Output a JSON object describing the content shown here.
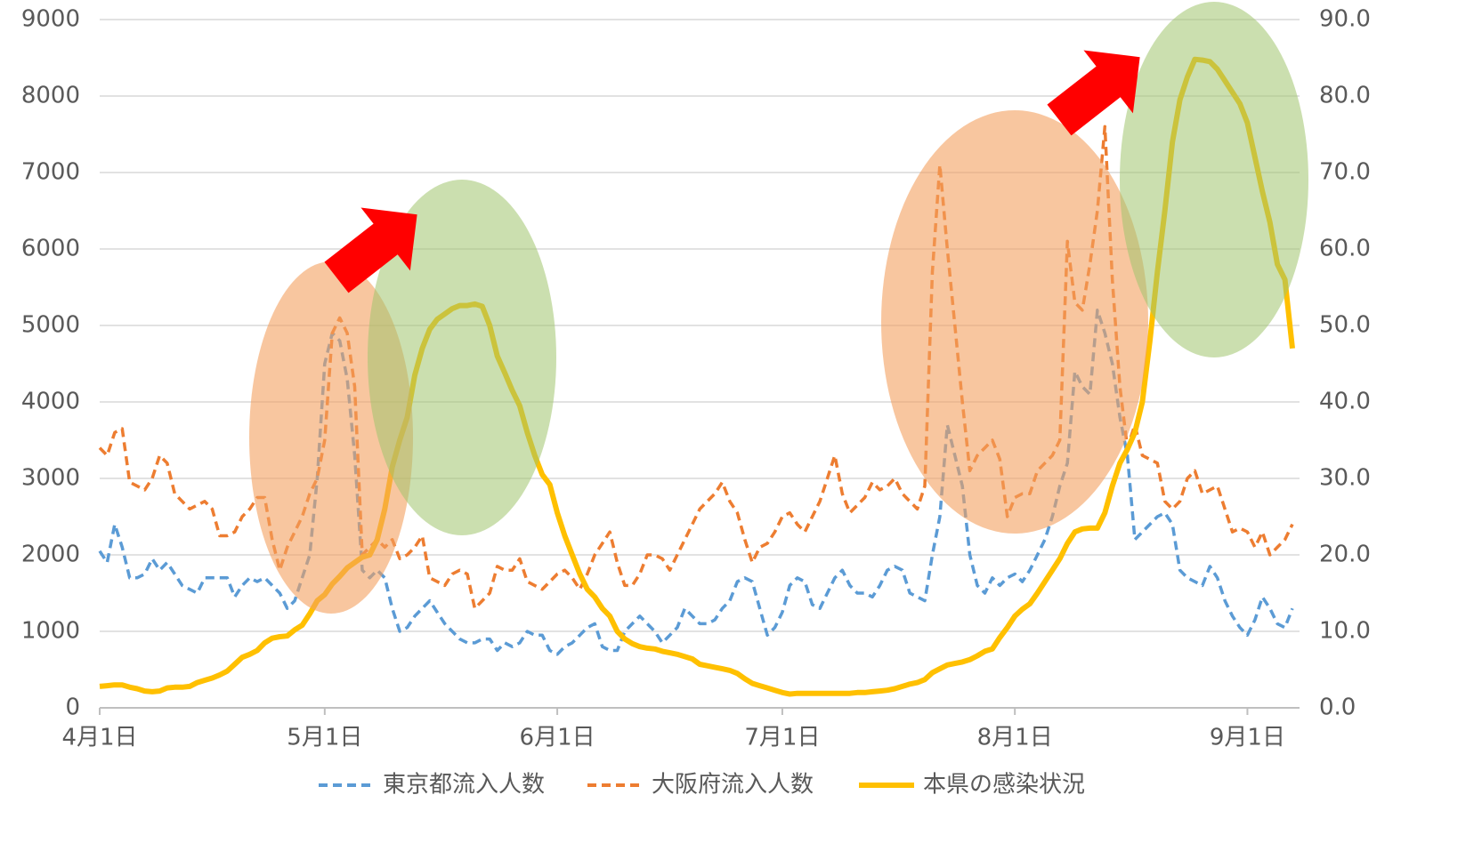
{
  "chart_data": {
    "type": "line",
    "categories": [
      "4月1日",
      null,
      null,
      null,
      null,
      null,
      null,
      null,
      null,
      null,
      null,
      null,
      null,
      null,
      null,
      null,
      null,
      null,
      null,
      null,
      null,
      null,
      null,
      null,
      null,
      null,
      null,
      null,
      null,
      null,
      "5月1日",
      null,
      null,
      null,
      null,
      null,
      null,
      null,
      null,
      null,
      null,
      null,
      null,
      null,
      null,
      null,
      null,
      null,
      null,
      null,
      null,
      null,
      null,
      null,
      null,
      null,
      null,
      null,
      null,
      null,
      null,
      "6月1日",
      null,
      null,
      null,
      null,
      null,
      null,
      null,
      null,
      null,
      null,
      null,
      null,
      null,
      null,
      null,
      null,
      null,
      null,
      null,
      null,
      null,
      null,
      null,
      null,
      null,
      null,
      null,
      null,
      null,
      "7月1日",
      null,
      null,
      null,
      null,
      null,
      null,
      null,
      null,
      null,
      null,
      null,
      null,
      null,
      null,
      null,
      null,
      null,
      null,
      null,
      null,
      null,
      null,
      null,
      null,
      null,
      null,
      null,
      null,
      null,
      null,
      "8月1日",
      null,
      null,
      null,
      null,
      null,
      null,
      null,
      null,
      null,
      null,
      null,
      null,
      null,
      null,
      null,
      null,
      null,
      null,
      null,
      null,
      null,
      null,
      null,
      null,
      null,
      null,
      null,
      null,
      null,
      null,
      "9月1日",
      null,
      null,
      null,
      null,
      null,
      null
    ],
    "series": [
      {
        "name": "東京都流入人数",
        "color": "#5b9bd5",
        "dashed": true,
        "values": [
          2050,
          1900,
          2400,
          2100,
          1700,
          1700,
          1750,
          1950,
          1800,
          1900,
          1750,
          1600,
          1550,
          1500,
          1700,
          1700,
          1700,
          1700,
          1450,
          1600,
          1700,
          1650,
          1700,
          1600,
          1500,
          1300,
          1400,
          1700,
          2000,
          3000,
          4500,
          4900,
          4800,
          4300,
          3300,
          1800,
          1700,
          1800,
          1700,
          1300,
          1000,
          1050,
          1200,
          1300,
          1400,
          1250,
          1100,
          1000,
          900,
          850,
          850,
          900,
          900,
          750,
          850,
          800,
          850,
          1000,
          950,
          950,
          750,
          700,
          800,
          850,
          950,
          1050,
          1100,
          800,
          750,
          750,
          1000,
          1100,
          1200,
          1100,
          1000,
          850,
          950,
          1050,
          1300,
          1200,
          1100,
          1100,
          1150,
          1300,
          1400,
          1650,
          1700,
          1650,
          1300,
          950,
          1050,
          1250,
          1600,
          1700,
          1650,
          1350,
          1300,
          1500,
          1700,
          1800,
          1600,
          1500,
          1500,
          1450,
          1600,
          1800,
          1850,
          1800,
          1500,
          1450,
          1400,
          2000,
          2500,
          3700,
          3300,
          2900,
          2000,
          1600,
          1500,
          1700,
          1600,
          1700,
          1750,
          1650,
          1800,
          2000,
          2200,
          2500,
          2900,
          3200,
          4400,
          4200,
          4100,
          5200,
          4900,
          4500,
          3800,
          3300,
          2200,
          2300,
          2400,
          2500,
          2550,
          2400,
          1800,
          1700,
          1650,
          1600,
          1850,
          1700,
          1400,
          1200,
          1050,
          950,
          1150,
          1450,
          1300,
          1100,
          1050,
          1300
        ]
      },
      {
        "name": "大阪府流入人数",
        "color": "#ed7d31",
        "dashed": true,
        "values": [
          3400,
          3300,
          3600,
          3650,
          2950,
          2900,
          2850,
          3000,
          3300,
          3200,
          2800,
          2700,
          2600,
          2650,
          2700,
          2600,
          2250,
          2250,
          2300,
          2500,
          2600,
          2750,
          2750,
          2200,
          1800,
          2100,
          2300,
          2500,
          2800,
          3000,
          3500,
          4900,
          5100,
          4900,
          4200,
          2000,
          2100,
          2200,
          2100,
          2200,
          1950,
          2000,
          2100,
          2250,
          1700,
          1650,
          1600,
          1750,
          1800,
          1750,
          1300,
          1400,
          1500,
          1850,
          1800,
          1800,
          1950,
          1650,
          1600,
          1550,
          1650,
          1750,
          1800,
          1700,
          1550,
          1750,
          2000,
          2150,
          2300,
          1900,
          1600,
          1600,
          1750,
          2000,
          2000,
          1950,
          1800,
          2000,
          2200,
          2400,
          2600,
          2700,
          2800,
          2950,
          2700,
          2550,
          2200,
          1900,
          2100,
          2150,
          2300,
          2500,
          2550,
          2400,
          2300,
          2500,
          2700,
          3000,
          3300,
          2800,
          2550,
          2650,
          2750,
          2950,
          2850,
          2900,
          3000,
          2800,
          2700,
          2600,
          2900,
          5700,
          7100,
          6000,
          5000,
          4000,
          3100,
          3300,
          3400,
          3500,
          3250,
          2500,
          2750,
          2800,
          2800,
          3100,
          3200,
          3300,
          3500,
          6100,
          5300,
          5200,
          5800,
          6500,
          7600,
          5600,
          4200,
          3400,
          3700,
          3300,
          3250,
          3200,
          2700,
          2600,
          2700,
          3000,
          3100,
          2800,
          2850,
          2900,
          2600,
          2300,
          2350,
          2300,
          2100,
          2300,
          2000,
          2100,
          2200,
          2400
        ]
      },
      {
        "name": "本県の感染状況",
        "color": "#ffc000",
        "dashed": false,
        "axis": "y2",
        "values": [
          2.8,
          2.9,
          3.0,
          3.0,
          2.7,
          2.5,
          2.2,
          2.1,
          2.2,
          2.6,
          2.7,
          2.7,
          2.8,
          3.3,
          3.6,
          3.9,
          4.3,
          4.8,
          5.7,
          6.6,
          7.0,
          7.5,
          8.5,
          9.1,
          9.3,
          9.4,
          10.2,
          10.8,
          12.3,
          14,
          14.8,
          16.2,
          17.2,
          18.3,
          19.0,
          19.7,
          20,
          22,
          26,
          31.5,
          35,
          38,
          43.5,
          47,
          49.5,
          50.8,
          51.5,
          52.2,
          52.6,
          52.6,
          52.8,
          52.5,
          50,
          46,
          43.8,
          41.5,
          39.5,
          36,
          33,
          30.5,
          29.2,
          25.5,
          22.5,
          20,
          17.5,
          15.5,
          14.5,
          13,
          12,
          10,
          9,
          8.4,
          8.0,
          7.8,
          7.7,
          7.4,
          7.2,
          7.0,
          6.7,
          6.4,
          5.7,
          5.5,
          5.3,
          5.1,
          4.9,
          4.5,
          3.8,
          3.2,
          2.9,
          2.6,
          2.3,
          2.0,
          1.8,
          1.9,
          1.9,
          1.9,
          1.9,
          1.9,
          1.9,
          1.9,
          1.9,
          2.0,
          2.0,
          2.1,
          2.2,
          2.3,
          2.5,
          2.8,
          3.1,
          3.3,
          3.7,
          4.6,
          5.1,
          5.6,
          5.8,
          6.0,
          6.3,
          6.8,
          7.4,
          7.7,
          9.2,
          10.5,
          12.0,
          12.9,
          13.6,
          15,
          16.5,
          18,
          19.5,
          21.5,
          23,
          23.4,
          23.5,
          23.5,
          25.5,
          29,
          32,
          33.8,
          36,
          40,
          48,
          57,
          65,
          74,
          79.5,
          82.5,
          84.8,
          84.7,
          84.5,
          83.5,
          82,
          80.5,
          79,
          76.5,
          72,
          67.5,
          63.5,
          58,
          56,
          47
        ]
      }
    ],
    "ylim": [
      0,
      9000
    ],
    "yticks": [
      0,
      1000,
      2000,
      3000,
      4000,
      5000,
      6000,
      7000,
      8000,
      9000
    ],
    "y2lim": [
      0,
      90
    ],
    "y2ticks": [
      {
        "value": 0,
        "label": "0.0"
      },
      {
        "value": 10,
        "label": "10.0"
      },
      {
        "value": 20,
        "label": "20.0"
      },
      {
        "value": 30,
        "label": "30.0"
      },
      {
        "value": 40,
        "label": "40.0"
      },
      {
        "value": 50,
        "label": "50.0"
      },
      {
        "value": 60,
        "label": "60.0"
      },
      {
        "value": 70,
        "label": "70.0"
      },
      {
        "value": 80,
        "label": "80.0"
      },
      {
        "value": 90,
        "label": "90.0"
      }
    ],
    "grid": true,
    "legend": "bottom"
  }
}
